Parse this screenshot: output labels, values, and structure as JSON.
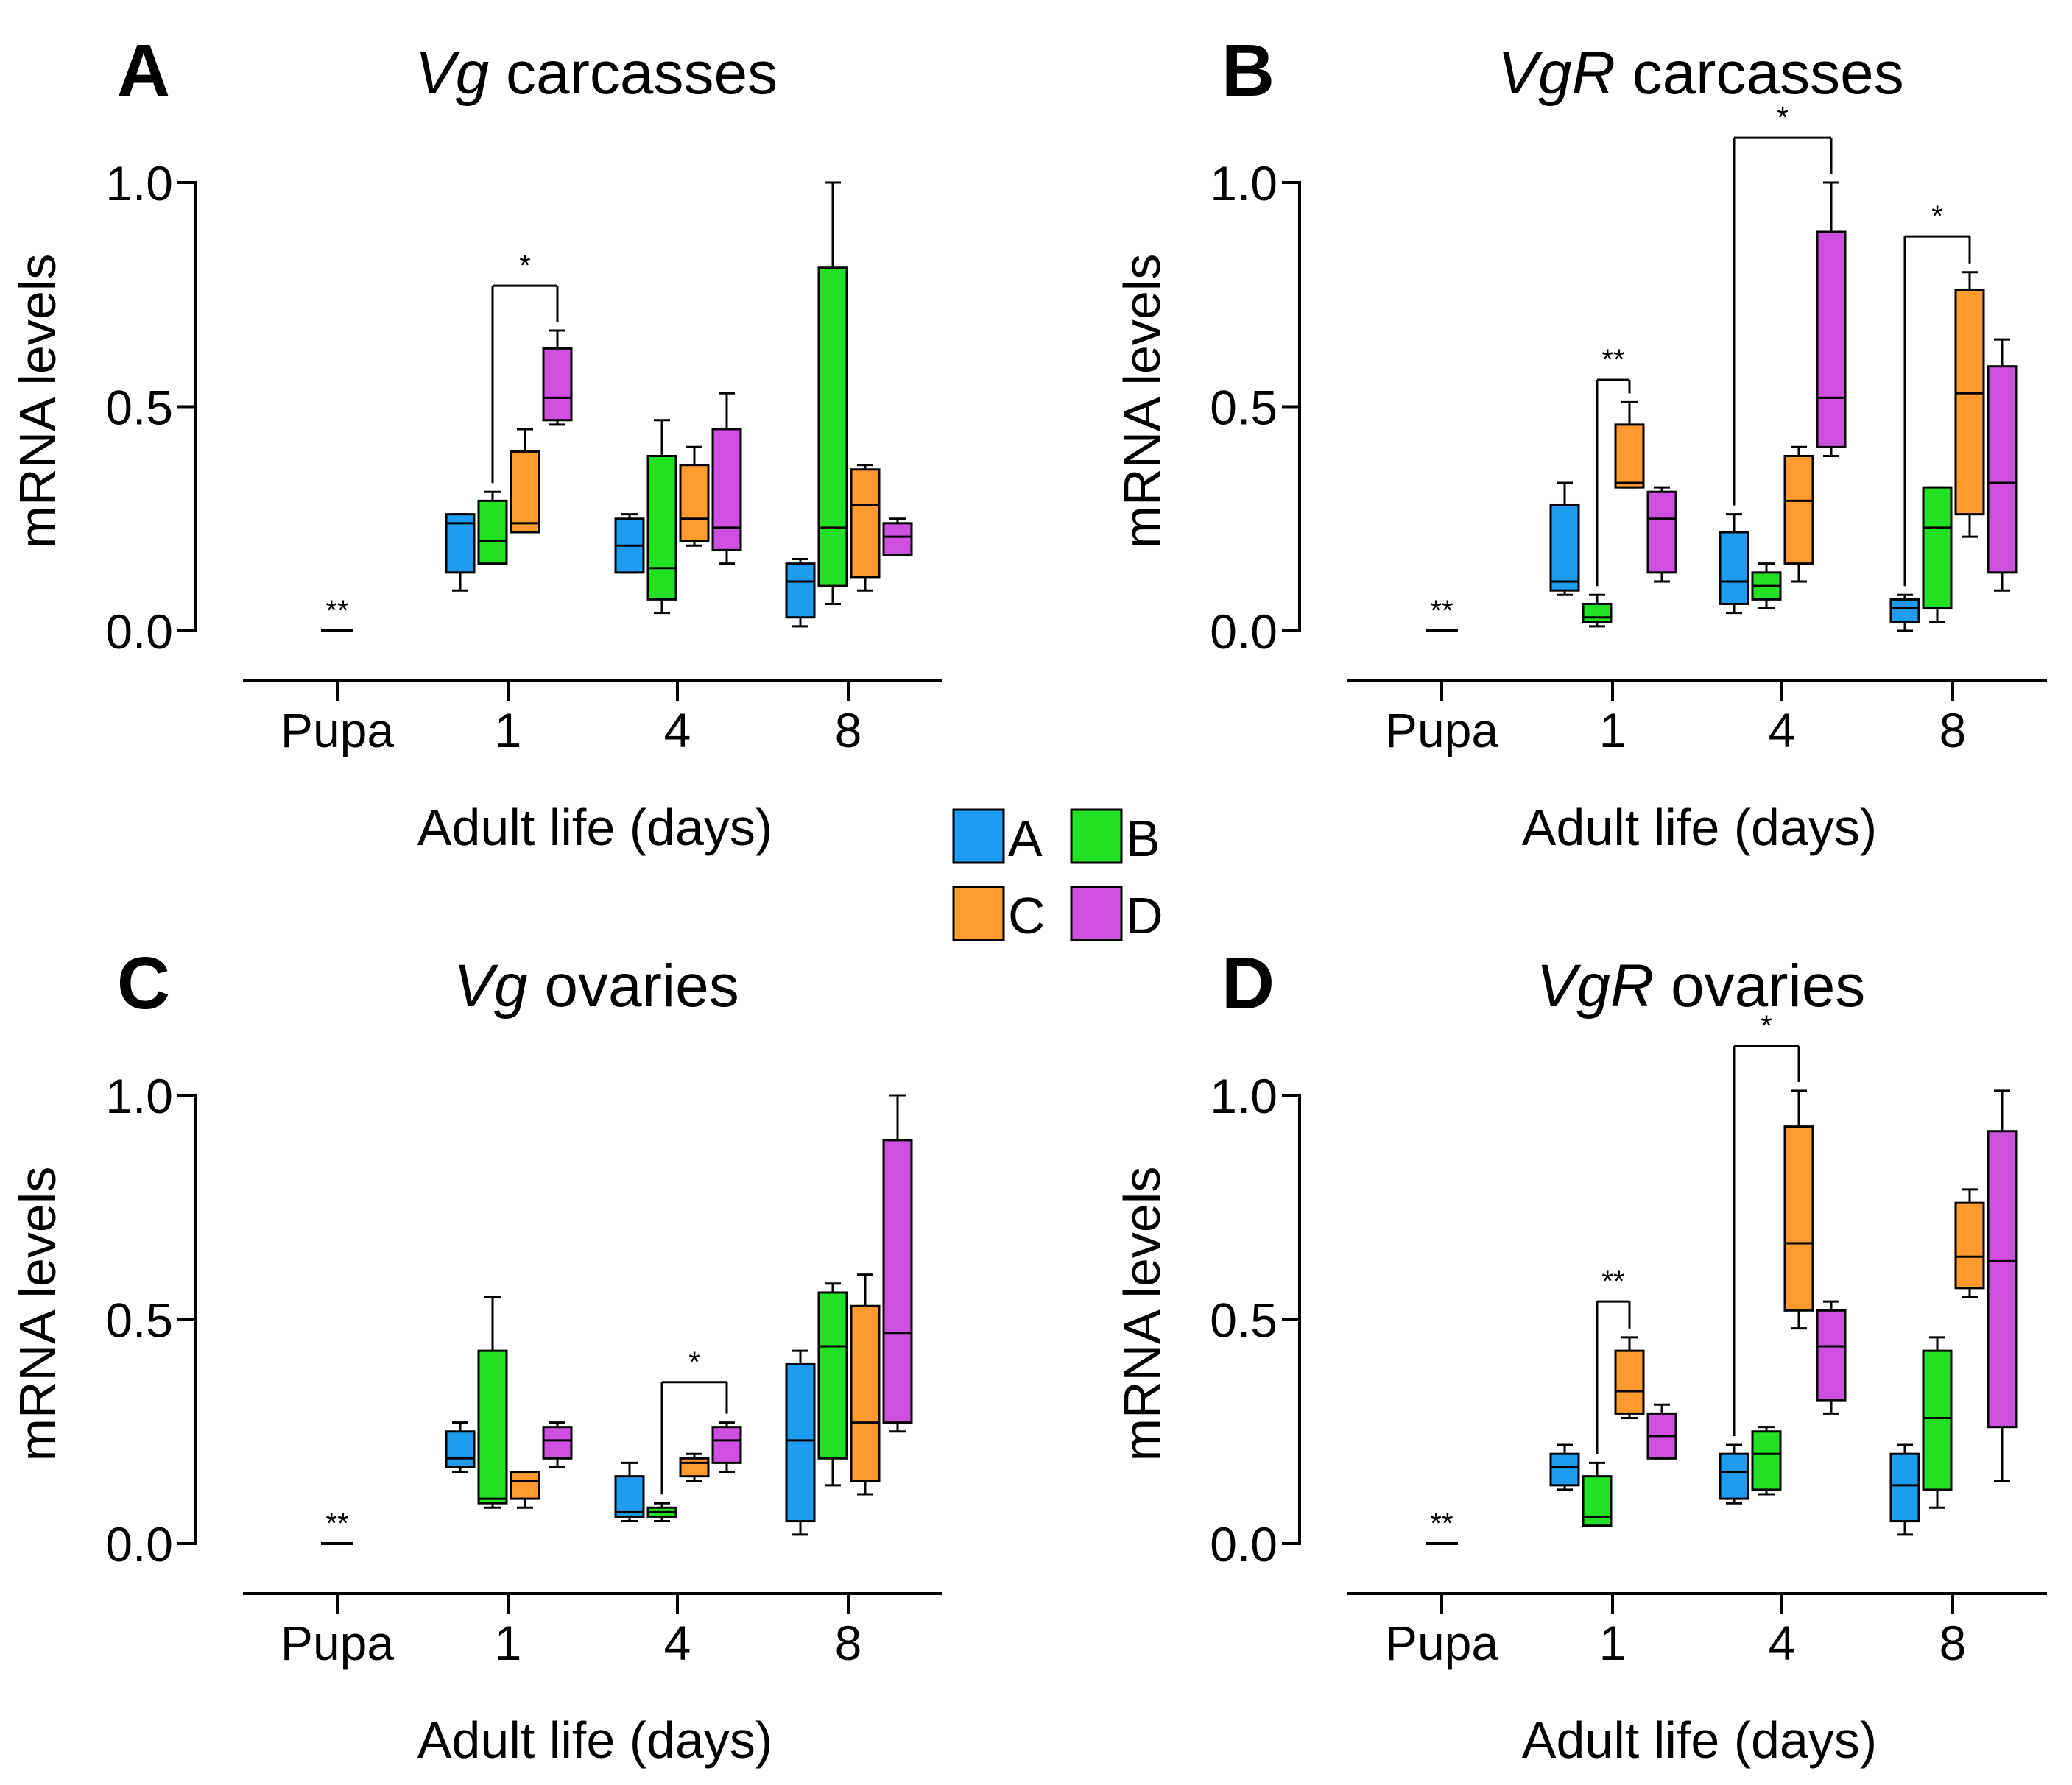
{
  "colors": {
    "A": "#1e9cf0",
    "B": "#22e022",
    "C": "#ff9a2e",
    "D": "#cf4fe0"
  },
  "legend": {
    "items": [
      {
        "key": "A",
        "label": "A",
        "color": "#1e9cf0"
      },
      {
        "key": "B",
        "label": "B",
        "color": "#22e022"
      },
      {
        "key": "C",
        "label": "C",
        "color": "#ff9a2e"
      },
      {
        "key": "D",
        "label": "D",
        "color": "#cf4fe0"
      }
    ]
  },
  "chart_data": [
    {
      "type": "box",
      "panel": "A",
      "title_italic": "Vg",
      "title_rest": " carcasses",
      "ylabel": "mRNA levels",
      "xlabel": "Adult life (days)",
      "ylim": [
        0,
        1.0
      ],
      "yticks": [
        "0.0",
        "0.5",
        "1.0"
      ],
      "categories": [
        "Pupa",
        "1",
        "4",
        "8"
      ],
      "pupa": {
        "value": 0.0,
        "label": "**"
      },
      "groups": [
        {
          "category": "1",
          "boxes": [
            {
              "series": "A",
              "min": 0.09,
              "q1": 0.13,
              "median": 0.24,
              "q3": 0.26,
              "max": 0.26
            },
            {
              "series": "B",
              "min": 0.15,
              "q1": 0.15,
              "median": 0.2,
              "q3": 0.29,
              "max": 0.31
            },
            {
              "series": "C",
              "min": 0.22,
              "q1": 0.22,
              "median": 0.24,
              "q3": 0.4,
              "max": 0.45
            },
            {
              "series": "D",
              "min": 0.46,
              "q1": 0.47,
              "median": 0.52,
              "q3": 0.63,
              "max": 0.67
            }
          ]
        },
        {
          "category": "4",
          "boxes": [
            {
              "series": "A",
              "min": 0.13,
              "q1": 0.13,
              "median": 0.19,
              "q3": 0.25,
              "max": 0.26
            },
            {
              "series": "B",
              "min": 0.04,
              "q1": 0.07,
              "median": 0.14,
              "q3": 0.39,
              "max": 0.47
            },
            {
              "series": "C",
              "min": 0.19,
              "q1": 0.2,
              "median": 0.25,
              "q3": 0.37,
              "max": 0.41
            },
            {
              "series": "D",
              "min": 0.15,
              "q1": 0.18,
              "median": 0.23,
              "q3": 0.45,
              "max": 0.53
            }
          ]
        },
        {
          "category": "8",
          "boxes": [
            {
              "series": "A",
              "min": 0.01,
              "q1": 0.03,
              "median": 0.11,
              "q3": 0.15,
              "max": 0.16
            },
            {
              "series": "B",
              "min": 0.06,
              "q1": 0.1,
              "median": 0.23,
              "q3": 0.81,
              "max": 1.0
            },
            {
              "series": "C",
              "min": 0.09,
              "q1": 0.12,
              "median": 0.28,
              "q3": 0.36,
              "max": 0.37
            },
            {
              "series": "D",
              "min": 0.17,
              "q1": 0.17,
              "median": 0.21,
              "q3": 0.24,
              "max": 0.25
            }
          ]
        }
      ],
      "significance": [
        {
          "label": "*",
          "from": {
            "group": "1",
            "series": "B"
          },
          "to": {
            "group": "1",
            "series": "D"
          },
          "y": 0.77
        }
      ]
    },
    {
      "type": "box",
      "panel": "B",
      "title_italic": "VgR",
      "title_rest": " carcasses",
      "ylabel": "mRNA levels",
      "xlabel": "Adult life (days)",
      "ylim": [
        0,
        1.0
      ],
      "yticks": [
        "0.0",
        "0.5",
        "1.0"
      ],
      "categories": [
        "Pupa",
        "1",
        "4",
        "8"
      ],
      "pupa": {
        "value": 0.0,
        "label": "**"
      },
      "groups": [
        {
          "category": "1",
          "boxes": [
            {
              "series": "A",
              "min": 0.08,
              "q1": 0.09,
              "median": 0.11,
              "q3": 0.28,
              "max": 0.33
            },
            {
              "series": "B",
              "min": 0.01,
              "q1": 0.02,
              "median": 0.03,
              "q3": 0.06,
              "max": 0.08
            },
            {
              "series": "C",
              "min": 0.32,
              "q1": 0.32,
              "median": 0.33,
              "q3": 0.46,
              "max": 0.51
            },
            {
              "series": "D",
              "min": 0.11,
              "q1": 0.13,
              "median": 0.25,
              "q3": 0.31,
              "max": 0.32
            }
          ]
        },
        {
          "category": "4",
          "boxes": [
            {
              "series": "A",
              "min": 0.04,
              "q1": 0.06,
              "median": 0.11,
              "q3": 0.22,
              "max": 0.26
            },
            {
              "series": "B",
              "min": 0.05,
              "q1": 0.07,
              "median": 0.1,
              "q3": 0.13,
              "max": 0.15
            },
            {
              "series": "C",
              "min": 0.11,
              "q1": 0.15,
              "median": 0.29,
              "q3": 0.39,
              "max": 0.41
            },
            {
              "series": "D",
              "min": 0.39,
              "q1": 0.41,
              "median": 0.52,
              "q3": 0.89,
              "max": 1.0
            }
          ]
        },
        {
          "category": "8",
          "boxes": [
            {
              "series": "A",
              "min": 0.0,
              "q1": 0.02,
              "median": 0.05,
              "q3": 0.07,
              "max": 0.08
            },
            {
              "series": "B",
              "min": 0.02,
              "q1": 0.05,
              "median": 0.23,
              "q3": 0.32,
              "max": 0.32
            },
            {
              "series": "C",
              "min": 0.21,
              "q1": 0.26,
              "median": 0.53,
              "q3": 0.76,
              "max": 0.8
            },
            {
              "series": "D",
              "min": 0.09,
              "q1": 0.13,
              "median": 0.33,
              "q3": 0.59,
              "max": 0.65
            }
          ]
        }
      ],
      "significance": [
        {
          "label": "**",
          "from": {
            "group": "1",
            "series": "B"
          },
          "to": {
            "group": "1",
            "series": "C"
          },
          "y": 0.56
        },
        {
          "label": "*",
          "from": {
            "group": "4",
            "series": "A"
          },
          "to": {
            "group": "4",
            "series": "D"
          },
          "y": 1.1
        },
        {
          "label": "*",
          "from": {
            "group": "8",
            "series": "A"
          },
          "to": {
            "group": "8",
            "series": "C"
          },
          "y": 0.88
        }
      ]
    },
    {
      "type": "box",
      "panel": "C",
      "title_italic": "Vg",
      "title_rest": " ovaries",
      "ylabel": "mRNA levels",
      "xlabel": "Adult life (days)",
      "ylim": [
        0,
        1.0
      ],
      "yticks": [
        "0.0",
        "0.5",
        "1.0"
      ],
      "categories": [
        "Pupa",
        "1",
        "4",
        "8"
      ],
      "pupa": {
        "value": 0.0,
        "label": "**"
      },
      "groups": [
        {
          "category": "1",
          "boxes": [
            {
              "series": "A",
              "min": 0.16,
              "q1": 0.17,
              "median": 0.19,
              "q3": 0.25,
              "max": 0.27
            },
            {
              "series": "B",
              "min": 0.08,
              "q1": 0.09,
              "median": 0.1,
              "q3": 0.43,
              "max": 0.55
            },
            {
              "series": "C",
              "min": 0.08,
              "q1": 0.1,
              "median": 0.14,
              "q3": 0.16,
              "max": 0.16
            },
            {
              "series": "D",
              "min": 0.17,
              "q1": 0.19,
              "median": 0.23,
              "q3": 0.26,
              "max": 0.27
            }
          ]
        },
        {
          "category": "4",
          "boxes": [
            {
              "series": "A",
              "min": 0.05,
              "q1": 0.06,
              "median": 0.07,
              "q3": 0.15,
              "max": 0.18
            },
            {
              "series": "B",
              "min": 0.05,
              "q1": 0.06,
              "median": 0.07,
              "q3": 0.08,
              "max": 0.09
            },
            {
              "series": "C",
              "min": 0.14,
              "q1": 0.15,
              "median": 0.18,
              "q3": 0.19,
              "max": 0.2
            },
            {
              "series": "D",
              "min": 0.16,
              "q1": 0.18,
              "median": 0.23,
              "q3": 0.26,
              "max": 0.27
            }
          ]
        },
        {
          "category": "8",
          "boxes": [
            {
              "series": "A",
              "min": 0.02,
              "q1": 0.05,
              "median": 0.23,
              "q3": 0.4,
              "max": 0.43
            },
            {
              "series": "B",
              "min": 0.13,
              "q1": 0.19,
              "median": 0.44,
              "q3": 0.56,
              "max": 0.58
            },
            {
              "series": "C",
              "min": 0.11,
              "q1": 0.14,
              "median": 0.27,
              "q3": 0.53,
              "max": 0.6
            },
            {
              "series": "D",
              "min": 0.25,
              "q1": 0.27,
              "median": 0.47,
              "q3": 0.9,
              "max": 1.0
            }
          ]
        }
      ],
      "significance": [
        {
          "label": "*",
          "from": {
            "group": "4",
            "series": "B"
          },
          "to": {
            "group": "4",
            "series": "D"
          },
          "y": 0.36
        }
      ]
    },
    {
      "type": "box",
      "panel": "D",
      "title_italic": "VgR",
      "title_rest": " ovaries",
      "ylabel": "mRNA levels",
      "xlabel": "Adult life (days)",
      "ylim": [
        0,
        1.0
      ],
      "yticks": [
        "0.0",
        "0.5",
        "1.0"
      ],
      "categories": [
        "Pupa",
        "1",
        "4",
        "8"
      ],
      "pupa": {
        "value": 0.0,
        "label": "**"
      },
      "groups": [
        {
          "category": "1",
          "boxes": [
            {
              "series": "A",
              "min": 0.12,
              "q1": 0.13,
              "median": 0.17,
              "q3": 0.2,
              "max": 0.22
            },
            {
              "series": "B",
              "min": 0.04,
              "q1": 0.04,
              "median": 0.06,
              "q3": 0.15,
              "max": 0.18
            },
            {
              "series": "C",
              "min": 0.28,
              "q1": 0.29,
              "median": 0.34,
              "q3": 0.43,
              "max": 0.46
            },
            {
              "series": "D",
              "min": 0.19,
              "q1": 0.19,
              "median": 0.24,
              "q3": 0.29,
              "max": 0.31
            }
          ]
        },
        {
          "category": "4",
          "boxes": [
            {
              "series": "A",
              "min": 0.09,
              "q1": 0.1,
              "median": 0.16,
              "q3": 0.2,
              "max": 0.22
            },
            {
              "series": "B",
              "min": 0.11,
              "q1": 0.12,
              "median": 0.2,
              "q3": 0.25,
              "max": 0.26
            },
            {
              "series": "C",
              "min": 0.48,
              "q1": 0.52,
              "median": 0.67,
              "q3": 0.93,
              "max": 1.01
            },
            {
              "series": "D",
              "min": 0.29,
              "q1": 0.32,
              "median": 0.44,
              "q3": 0.52,
              "max": 0.54
            }
          ]
        },
        {
          "category": "8",
          "boxes": [
            {
              "series": "A",
              "min": 0.02,
              "q1": 0.05,
              "median": 0.13,
              "q3": 0.2,
              "max": 0.22
            },
            {
              "series": "B",
              "min": 0.08,
              "q1": 0.12,
              "median": 0.28,
              "q3": 0.43,
              "max": 0.46
            },
            {
              "series": "C",
              "min": 0.55,
              "q1": 0.57,
              "median": 0.64,
              "q3": 0.76,
              "max": 0.79
            },
            {
              "series": "D",
              "min": 0.14,
              "q1": 0.26,
              "median": 0.63,
              "q3": 0.92,
              "max": 1.01
            }
          ]
        }
      ],
      "significance": [
        {
          "label": "**",
          "from": {
            "group": "1",
            "series": "B"
          },
          "to": {
            "group": "1",
            "series": "C"
          },
          "y": 0.54
        },
        {
          "label": "*",
          "from": {
            "group": "4",
            "series": "A"
          },
          "to": {
            "group": "4",
            "series": "C"
          },
          "y": 1.11
        }
      ]
    }
  ]
}
